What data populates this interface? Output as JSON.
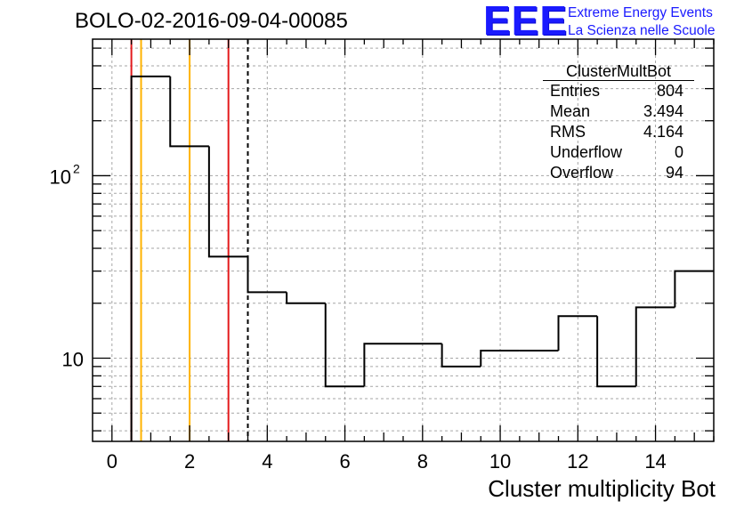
{
  "title": "BOLO-02-2016-09-04-00085",
  "logo": {
    "mark": "EEE",
    "line1": "Extreme Energy Events",
    "line2": "La Scienza nelle Scuole"
  },
  "stats": {
    "name": "ClusterMultBot",
    "rows": [
      {
        "label": "Entries",
        "value": "804"
      },
      {
        "label": "Mean",
        "value": "3.494"
      },
      {
        "label": "RMS",
        "value": "4.164"
      },
      {
        "label": "Underflow",
        "value": "0"
      },
      {
        "label": "Overflow",
        "value": "94"
      }
    ]
  },
  "chart_data": {
    "type": "bar",
    "histogram": true,
    "xlabel": "Cluster multiplicity Bot",
    "ylabel": "",
    "xlim": [
      -0.5,
      15.5
    ],
    "ylim": [
      3.5,
      560
    ],
    "yscale": "log",
    "grid": true,
    "bin_edges": [
      0.5,
      1.5,
      2.5,
      3.5,
      4.5,
      5.5,
      6.5,
      7.5,
      8.5,
      9.5,
      10.5,
      11.5,
      12.5,
      13.5,
      14.5,
      15.5
    ],
    "values": [
      350,
      145,
      36,
      23,
      20,
      7,
      12,
      12,
      9,
      11,
      11,
      17,
      7,
      19,
      30
    ],
    "x_ticks": [
      0,
      2,
      4,
      6,
      8,
      10,
      12,
      14
    ],
    "y_tick_labels": [
      "10",
      "10^2"
    ],
    "vertical_lines": [
      {
        "x": 0.5,
        "color": "#e31a1c",
        "style": "solid"
      },
      {
        "x": 0.75,
        "color": "#ffb300",
        "style": "solid"
      },
      {
        "x": 2.0,
        "color": "#ffb300",
        "style": "solid"
      },
      {
        "x": 3.0,
        "color": "#e31a1c",
        "style": "solid"
      },
      {
        "x": 3.5,
        "color": "#000000",
        "style": "dashed"
      }
    ]
  }
}
